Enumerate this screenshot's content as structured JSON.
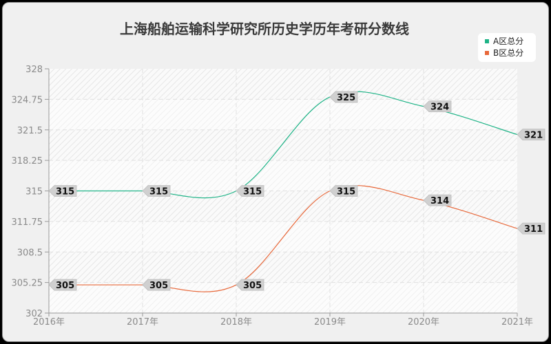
{
  "title": "上海船舶运输科学研究所历史学历年考研分数线",
  "legend": [
    {
      "label": "A区总分",
      "color": "#1db386"
    },
    {
      "label": "B区总分",
      "color": "#e8683a"
    }
  ],
  "chart_data": {
    "type": "line",
    "title": "上海船舶运输科学研究所历史学历年考研分数线",
    "xlabel": "",
    "ylabel": "",
    "categories": [
      "2016年",
      "2017年",
      "2018年",
      "2019年",
      "2020年",
      "2021年"
    ],
    "series": [
      {
        "name": "A区总分",
        "color": "#1db386",
        "values": [
          315,
          315,
          315,
          325,
          324,
          321
        ]
      },
      {
        "name": "B区总分",
        "color": "#e8683a",
        "values": [
          305,
          305,
          305,
          315,
          314,
          311
        ]
      }
    ],
    "ylim": [
      302,
      328
    ],
    "yticks": [
      "328",
      "324.75",
      "321.5",
      "318.25",
      "315",
      "311.75",
      "308.5",
      "305.25",
      "302"
    ],
    "grid": true,
    "smooth": true,
    "legend_position": "top-right",
    "data_labels": true
  }
}
